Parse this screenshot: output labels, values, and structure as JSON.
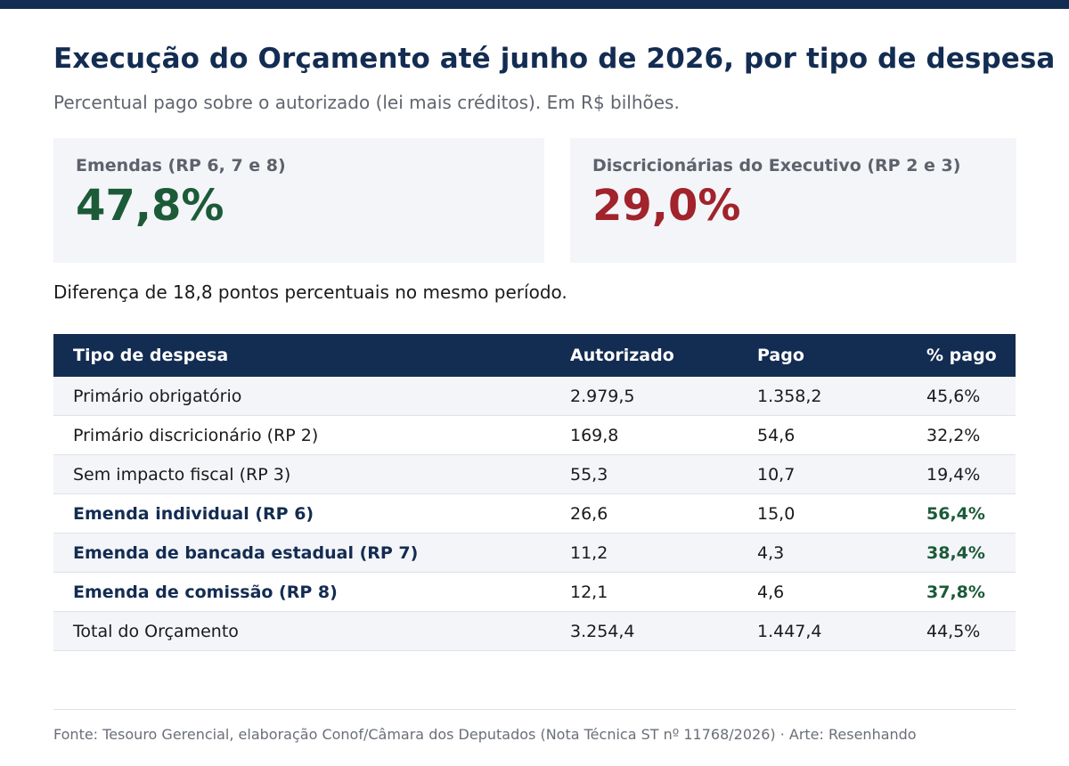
{
  "header": {
    "title": "Execução do Orçamento até junho de 2026, por tipo de despesa",
    "subtitle": "Percentual pago sobre o autorizado (lei mais créditos). Em R$ bilhões."
  },
  "cards": [
    {
      "label": "Emendas (RP 6, 7 e 8)",
      "value": "47,8%",
      "color": "#1c5b38"
    },
    {
      "label": "Discricionárias do Executivo (RP 2 e 3)",
      "value": "29,0%",
      "color": "#a1232b"
    }
  ],
  "note": "Diferença de 18,8 pontos percentuais no mesmo período.",
  "chart_data": {
    "type": "table",
    "columns": [
      "Tipo de despesa",
      "Autorizado",
      "Pago",
      "% pago"
    ],
    "rows": [
      {
        "tipo": "Primário obrigatório",
        "autorizado": "2.979,5",
        "pago": "1.358,2",
        "pct": "45,6%",
        "emphasis": false
      },
      {
        "tipo": "Primário discricionário (RP 2)",
        "autorizado": "169,8",
        "pago": "54,6",
        "pct": "32,2%",
        "emphasis": false
      },
      {
        "tipo": "Sem impacto fiscal (RP 3)",
        "autorizado": "55,3",
        "pago": "10,7",
        "pct": "19,4%",
        "emphasis": false
      },
      {
        "tipo": "Emenda individual (RP 6)",
        "autorizado": "26,6",
        "pago": "15,0",
        "pct": "56,4%",
        "emphasis": true
      },
      {
        "tipo": "Emenda de bancada estadual (RP 7)",
        "autorizado": "11,2",
        "pago": "4,3",
        "pct": "38,4%",
        "emphasis": true
      },
      {
        "tipo": "Emenda de comissão (RP 8)",
        "autorizado": "12,1",
        "pago": "4,6",
        "pct": "37,8%",
        "emphasis": true
      },
      {
        "tipo": "Total do Orçamento",
        "autorizado": "3.254,4",
        "pago": "1.447,4",
        "pct": "44,5%",
        "emphasis": false
      }
    ]
  },
  "footer": "Fonte: Tesouro Gerencial, elaboração Conof/Câmara dos Deputados (Nota Técnica ST nº 11768/2026)  ·  Arte: Resenhando",
  "colors": {
    "navy": "#132c52",
    "green": "#1c5b38",
    "red": "#a1232b",
    "panel": "#f4f5f9",
    "muted": "#60656e"
  }
}
